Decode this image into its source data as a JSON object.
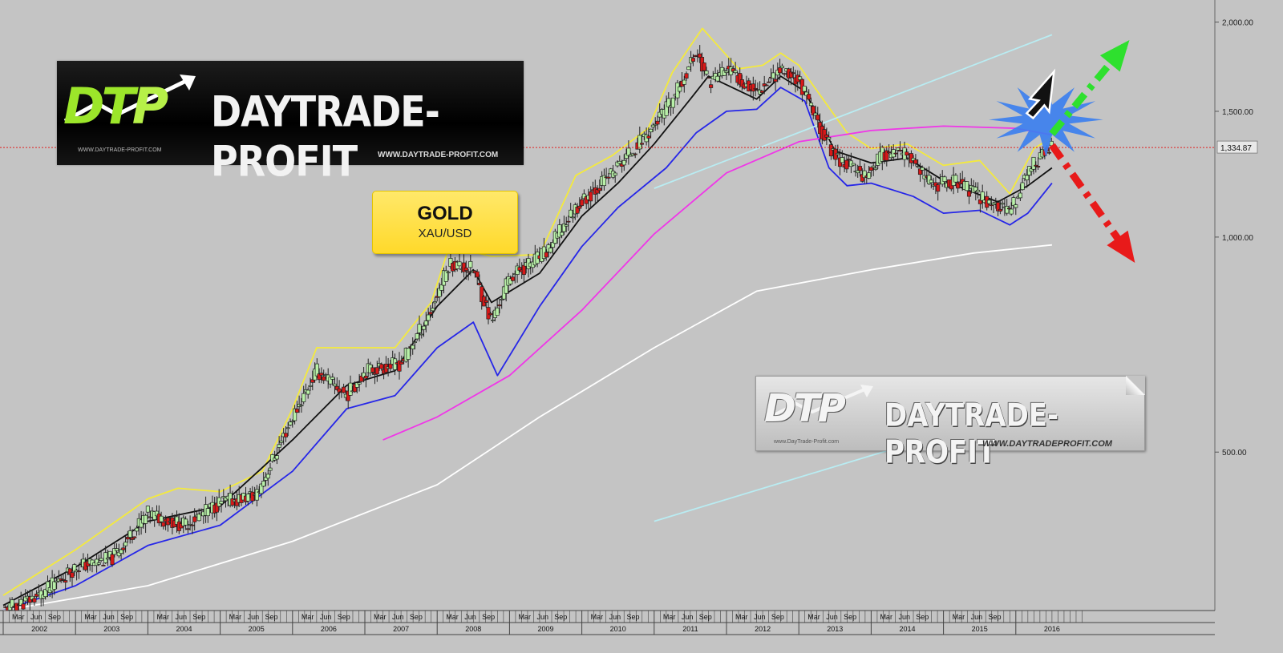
{
  "chart_data": {
    "type": "candlestick",
    "title": "GOLD",
    "subtitle": "XAU/USD",
    "scale": "log",
    "ylim": [
      300,
      2050
    ],
    "y_ticks": [
      500,
      1000,
      1500,
      2000
    ],
    "y_tick_labels": [
      "500.00",
      "1,000.00",
      "1,500.00",
      "2,000.00"
    ],
    "current_price": 1334.87,
    "current_price_label": "1,334.87",
    "x_start": "2002-01",
    "x_end": "2016-12",
    "months_short": [
      "Mar",
      "Jun",
      "Sep"
    ],
    "years": [
      "2002",
      "2003",
      "2004",
      "2005",
      "2006",
      "2007",
      "2008",
      "2009",
      "2010",
      "2011",
      "2012",
      "2013",
      "2014",
      "2015",
      "2016"
    ],
    "price_x": [
      "2002-01",
      "2002-07",
      "2003-01",
      "2003-07",
      "2004-01",
      "2004-07",
      "2005-01",
      "2005-07",
      "2006-01",
      "2006-05",
      "2006-10",
      "2007-01",
      "2007-07",
      "2007-12",
      "2008-03",
      "2008-07",
      "2008-10",
      "2009-01",
      "2009-07",
      "2009-12",
      "2010-06",
      "2010-12",
      "2011-04",
      "2011-08",
      "2011-10",
      "2012-01",
      "2012-06",
      "2012-10",
      "2013-01",
      "2013-04",
      "2013-07",
      "2013-12",
      "2014-03",
      "2014-07",
      "2014-11",
      "2015-03",
      "2015-07",
      "2015-12",
      "2016-03",
      "2016-06",
      "2016-07"
    ],
    "price_y": [
      300,
      315,
      345,
      355,
      410,
      395,
      425,
      435,
      560,
      650,
      600,
      650,
      665,
      790,
      920,
      900,
      760,
      880,
      950,
      1100,
      1230,
      1400,
      1550,
      1820,
      1650,
      1720,
      1600,
      1720,
      1660,
      1450,
      1300,
      1220,
      1310,
      1300,
      1180,
      1200,
      1140,
      1080,
      1240,
      1320,
      1340
    ],
    "series": [
      {
        "name": "",
        "color": "#f4ea3c",
        "x": [
          "2002-01",
          "2003-01",
          "2004-01",
          "2004-06",
          "2005-01",
          "2005-08",
          "2006-01",
          "2006-05",
          "2006-10",
          "2007-06",
          "2007-12",
          "2008-03",
          "2008-10",
          "2009-06",
          "2009-12",
          "2010-06",
          "2010-12",
          "2011-04",
          "2011-09",
          "2012-03",
          "2012-07",
          "2012-10",
          "2013-01",
          "2013-05",
          "2013-09",
          "2014-01",
          "2014-07",
          "2015-01",
          "2015-07",
          "2015-12",
          "2016-04",
          "2016-07"
        ],
        "y": [
          315,
          365,
          430,
          445,
          440,
          470,
          575,
          700,
          700,
          700,
          810,
          970,
          940,
          945,
          1220,
          1300,
          1420,
          1700,
          1960,
          1720,
          1740,
          1810,
          1740,
          1560,
          1400,
          1330,
          1350,
          1260,
          1280,
          1150,
          1330,
          1380
        ]
      },
      {
        "name": "",
        "color": "#111111",
        "x": [
          "2002-01",
          "2003-01",
          "2004-01",
          "2005-01",
          "2006-01",
          "2006-10",
          "2007-06",
          "2008-01",
          "2008-07",
          "2008-10",
          "2009-06",
          "2010-01",
          "2010-07",
          "2011-01",
          "2011-07",
          "2011-10",
          "2012-06",
          "2012-10",
          "2013-02",
          "2013-07",
          "2014-01",
          "2014-07",
          "2015-01",
          "2015-10",
          "2016-03",
          "2016-07"
        ],
        "y": [
          305,
          345,
          400,
          420,
          520,
          620,
          650,
          800,
          900,
          810,
          890,
          1070,
          1190,
          1350,
          1560,
          1680,
          1560,
          1680,
          1600,
          1320,
          1270,
          1290,
          1200,
          1120,
          1180,
          1250
        ]
      },
      {
        "name": "",
        "color": "#2626e8",
        "x": [
          "2002-01",
          "2003-01",
          "2004-01",
          "2005-01",
          "2006-01",
          "2006-10",
          "2007-06",
          "2008-01",
          "2008-07",
          "2008-11",
          "2009-06",
          "2010-01",
          "2010-07",
          "2011-03",
          "2011-08",
          "2012-01",
          "2012-06",
          "2012-10",
          "2013-02",
          "2013-06",
          "2013-09",
          "2014-01",
          "2014-08",
          "2015-01",
          "2015-07",
          "2015-12",
          "2016-03",
          "2016-07"
        ],
        "y": [
          300,
          325,
          370,
          395,
          470,
          575,
          600,
          700,
          760,
          640,
          800,
          970,
          1100,
          1250,
          1400,
          1500,
          1510,
          1620,
          1550,
          1250,
          1180,
          1190,
          1140,
          1080,
          1090,
          1040,
          1080,
          1190
        ]
      },
      {
        "name": "",
        "color": "#f036e8",
        "x": [
          "2007-04",
          "2008-01",
          "2009-01",
          "2010-01",
          "2011-01",
          "2012-01",
          "2013-01",
          "2014-01",
          "2015-01",
          "2016-01",
          "2016-07"
        ],
        "y": [
          520,
          560,
          640,
          790,
          1010,
          1230,
          1360,
          1410,
          1430,
          1420,
          1390
        ]
      },
      {
        "name": "",
        "color": "#ffffff",
        "x": [
          "2002-01",
          "2004-01",
          "2006-01",
          "2008-01",
          "2009-06",
          "2011-01",
          "2012-06",
          "2014-01",
          "2015-06",
          "2016-07"
        ],
        "y": [
          300,
          325,
          375,
          450,
          560,
          700,
          840,
          900,
          950,
          975
        ]
      },
      {
        "name": "",
        "color": "#b9ecf2",
        "x": [
          "2011-01",
          "2016-07"
        ],
        "y": [
          1170,
          1920
        ]
      },
      {
        "name": "",
        "color": "#b9ecf2",
        "x": [
          "2011-01",
          "2016-07"
        ],
        "y": [
          400,
          590
        ]
      }
    ],
    "annotations": {
      "arrow_up": {
        "from": [
          "2016-07",
          1395
        ],
        "to": [
          "2017-07",
          1850
        ],
        "color": "#2ee02e"
      },
      "arrow_down": {
        "from": [
          "2016-07",
          1345
        ],
        "to": [
          "2017-08",
          940
        ],
        "color": "#e81a1a"
      }
    }
  },
  "logos": {
    "top": {
      "mark_left": "DT",
      "mark_right": "P",
      "brand": "DAYTRADE-PROFIT",
      "url_small": "WWW.DAYTRADE-PROFIT.COM",
      "url_large": "WWW.DAYTRADE-PROFIT.COM"
    },
    "bottom": {
      "mark": "DTP",
      "brand": "DAYTRADE-PROFIT",
      "url_small": "www.DayTrade-Profit.com",
      "url_large": "WWW.DAYTRADEPROFIT.COM"
    }
  },
  "colors": {
    "background": "#c4c4c4",
    "bull_candle": "#b8f0a8",
    "bear_candle": "#d81818",
    "price_line": "#e02020"
  }
}
